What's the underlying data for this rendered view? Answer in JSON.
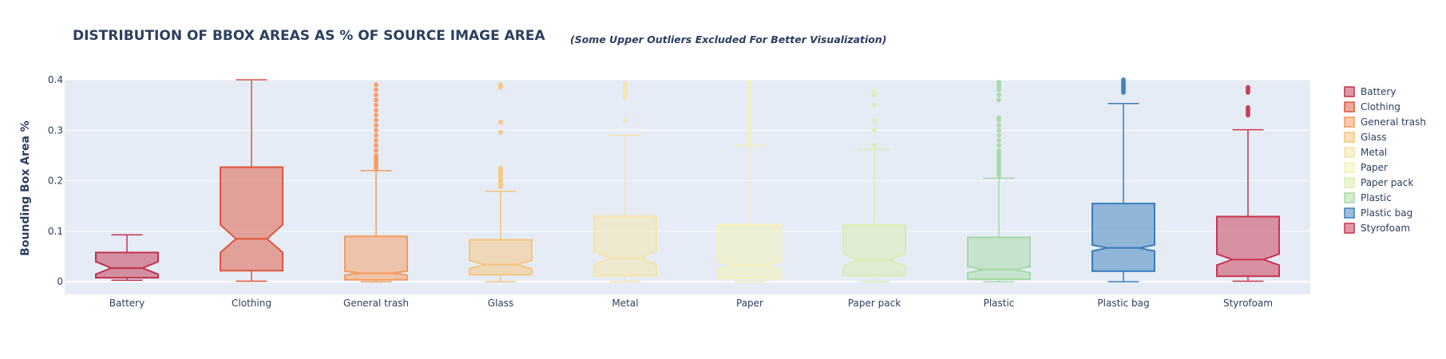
{
  "chart_data": {
    "type": "box",
    "title": "DISTRIBUTION OF BBOX AREAS AS % OF SOURCE IMAGE AREA",
    "subtitle": "(Some Upper Outliers Excluded For Better Visualization)",
    "xlabel": "",
    "ylabel": "Bounding Box Area %",
    "ylim": [
      -0.025,
      0.4
    ],
    "yticks": [
      0,
      0.1,
      0.2,
      0.3,
      0.4
    ],
    "ytick_labels": [
      "0",
      "0.1",
      "0.2",
      "0.3",
      "0.4"
    ],
    "grid": true,
    "notched": true,
    "legend_position": "right",
    "categories": [
      "Battery",
      "Clothing",
      "General trash",
      "Glass",
      "Metal",
      "Paper",
      "Paper pack",
      "Plastic",
      "Plastic bag",
      "Styrofoam"
    ],
    "series": [
      {
        "name": "Battery",
        "color": "#c2324b",
        "lower_fence": 0.003,
        "q1": 0.008,
        "median": 0.027,
        "q3": 0.058,
        "upper_fence": 0.093,
        "notch_low": 0.015,
        "notch_high": 0.04,
        "outliers": []
      },
      {
        "name": "Clothing",
        "color": "#e0553a",
        "lower_fence": 0.001,
        "q1": 0.022,
        "median": 0.085,
        "q3": 0.227,
        "upper_fence": 0.4,
        "notch_low": 0.058,
        "notch_high": 0.113,
        "outliers": []
      },
      {
        "name": "General trash",
        "color": "#f59a5c",
        "lower_fence": 0.0,
        "q1": 0.004,
        "median": 0.017,
        "q3": 0.09,
        "upper_fence": 0.22,
        "notch_low": 0.013,
        "notch_high": 0.021,
        "outliers": [
          0.225,
          0.23,
          0.235,
          0.24,
          0.245,
          0.25,
          0.26,
          0.27,
          0.28,
          0.29,
          0.3,
          0.31,
          0.32,
          0.33,
          0.34,
          0.35,
          0.36,
          0.37,
          0.38,
          0.39
        ]
      },
      {
        "name": "Glass",
        "color": "#f8c47a",
        "lower_fence": 0.0,
        "q1": 0.014,
        "median": 0.034,
        "q3": 0.083,
        "upper_fence": 0.179,
        "notch_low": 0.026,
        "notch_high": 0.042,
        "outliers": [
          0.188,
          0.193,
          0.2,
          0.205,
          0.21,
          0.215,
          0.22,
          0.225,
          0.296,
          0.316,
          0.385,
          0.39
        ]
      },
      {
        "name": "Metal",
        "color": "#f7e3a6",
        "lower_fence": 0.0,
        "q1": 0.012,
        "median": 0.047,
        "q3": 0.13,
        "upper_fence": 0.29,
        "notch_low": 0.033,
        "notch_high": 0.061,
        "outliers": [
          0.32,
          0.365,
          0.372,
          0.378,
          0.385,
          0.392
        ]
      },
      {
        "name": "Paper",
        "color": "#f6f2b6",
        "lower_fence": 0.0,
        "q1": 0.007,
        "median": 0.033,
        "q3": 0.113,
        "upper_fence": 0.27,
        "notch_low": 0.025,
        "notch_high": 0.041,
        "outliers": [
          0.275,
          0.28,
          0.29,
          0.3,
          0.31,
          0.32,
          0.33,
          0.34,
          0.35,
          0.36,
          0.37,
          0.38,
          0.39,
          0.395
        ]
      },
      {
        "name": "Paper pack",
        "color": "#d8eeac",
        "lower_fence": 0.0,
        "q1": 0.012,
        "median": 0.043,
        "q3": 0.113,
        "upper_fence": 0.262,
        "notch_low": 0.031,
        "notch_high": 0.055,
        "outliers": [
          0.27,
          0.3,
          0.32,
          0.35,
          0.37,
          0.377
        ]
      },
      {
        "name": "Plastic",
        "color": "#a6d9a3",
        "lower_fence": 0.0,
        "q1": 0.005,
        "median": 0.024,
        "q3": 0.088,
        "upper_fence": 0.205,
        "notch_low": 0.018,
        "notch_high": 0.03,
        "outliers": [
          0.21,
          0.215,
          0.22,
          0.225,
          0.23,
          0.235,
          0.24,
          0.245,
          0.25,
          0.255,
          0.26,
          0.27,
          0.28,
          0.29,
          0.3,
          0.31,
          0.32,
          0.325,
          0.36,
          0.37,
          0.38,
          0.385,
          0.39,
          0.395
        ]
      },
      {
        "name": "Plastic bag",
        "color": "#3a7dbb",
        "lower_fence": 0.0,
        "q1": 0.021,
        "median": 0.067,
        "q3": 0.155,
        "upper_fence": 0.353,
        "notch_low": 0.061,
        "notch_high": 0.073,
        "outliers": [
          0.375,
          0.38,
          0.385,
          0.39,
          0.395,
          0.4
        ]
      },
      {
        "name": "Styrofoam",
        "color": "#c9344e",
        "lower_fence": 0.001,
        "q1": 0.011,
        "median": 0.044,
        "q3": 0.129,
        "upper_fence": 0.301,
        "notch_low": 0.033,
        "notch_high": 0.055,
        "outliers": [
          0.33,
          0.335,
          0.34,
          0.345,
          0.375,
          0.38,
          0.385
        ]
      }
    ]
  }
}
